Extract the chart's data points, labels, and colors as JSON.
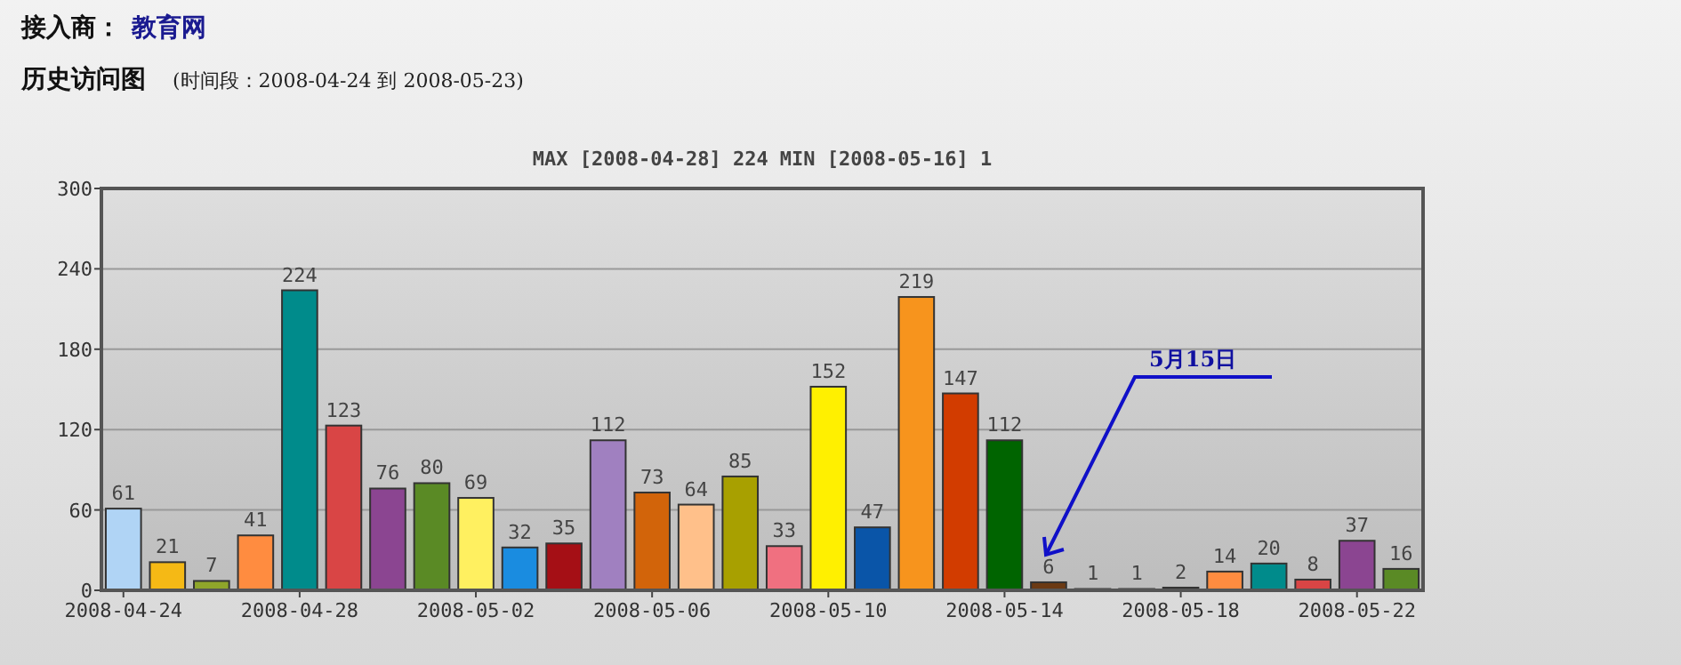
{
  "chart_data": {
    "type": "bar",
    "title": "MAX [2008-04-28] 224  MIN [2008-05-16] 1",
    "x": [
      "2008-04-24",
      "2008-04-25",
      "2008-04-26",
      "2008-04-27",
      "2008-04-28",
      "2008-04-29",
      "2008-04-30",
      "2008-05-01",
      "2008-05-02",
      "2008-05-03",
      "2008-05-04",
      "2008-05-05",
      "2008-05-06",
      "2008-05-07",
      "2008-05-08",
      "2008-05-09",
      "2008-05-10",
      "2008-05-11",
      "2008-05-12",
      "2008-05-13",
      "2008-05-14",
      "2008-05-15",
      "2008-05-16",
      "2008-05-17",
      "2008-05-18",
      "2008-05-19",
      "2008-05-20",
      "2008-05-21",
      "2008-05-22",
      "2008-05-23"
    ],
    "values": [
      61,
      21,
      7,
      41,
      224,
      123,
      76,
      80,
      69,
      32,
      35,
      112,
      73,
      64,
      85,
      33,
      152,
      47,
      219,
      147,
      112,
      6,
      1,
      1,
      2,
      14,
      20,
      8,
      37,
      16
    ],
    "colors": [
      "#b0d4f5",
      "#f5b915",
      "#8fa62a",
      "#ff8c40",
      "#008b8b",
      "#d94545",
      "#8b4591",
      "#5a8a25",
      "#fff060",
      "#1a8ce0",
      "#a50f15",
      "#a080c0",
      "#d2640a",
      "#ffc08a",
      "#a8a000",
      "#f07080",
      "#fff000",
      "#0a55a8",
      "#f7941d",
      "#d23c00",
      "#006400",
      "#6b3a14",
      "#b0d4f5",
      "#f5b915",
      "#6a7a30",
      "#ff8c40",
      "#008b8b",
      "#d94545",
      "#8b4591",
      "#5a8a25"
    ],
    "data_labels": true,
    "xlim": [
      "2008-04-23T12:00",
      "2008-05-23T12:00"
    ],
    "xticks": [
      "2008-04-24",
      "2008-04-28",
      "2008-05-02",
      "2008-05-06",
      "2008-05-10",
      "2008-05-14",
      "2008-05-18",
      "2008-05-22"
    ],
    "ylim": [
      0,
      300
    ],
    "yticks": [
      0,
      60,
      120,
      180,
      240,
      300
    ],
    "grid": "y",
    "annotations": [
      "接入商：",
      "教育网",
      "历史访问图",
      "(时间段：2008-04-24 到 2008-05-23)",
      "5月15日"
    ]
  }
}
